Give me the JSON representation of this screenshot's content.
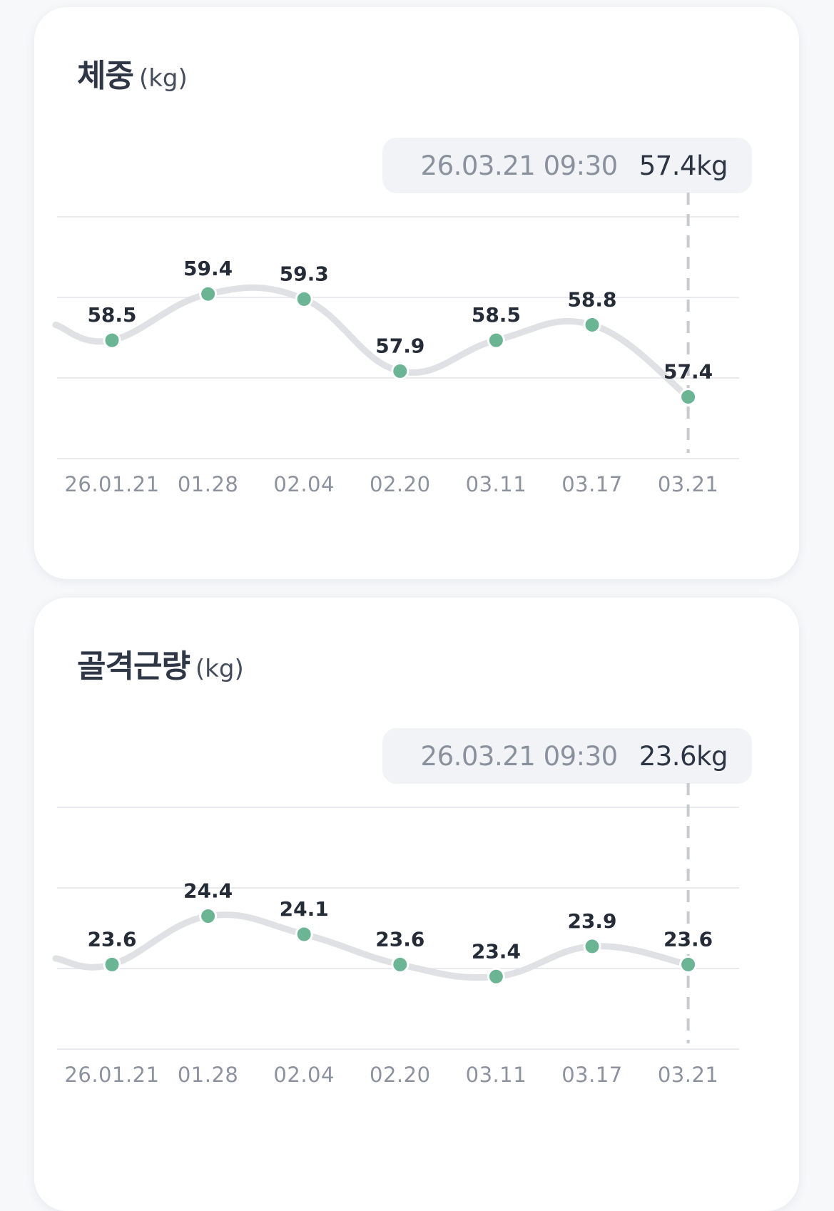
{
  "colors": {
    "line": "#e0e1e4",
    "point": "#6bb595",
    "grid": "#e9eaed",
    "guide": "#c7cad0"
  },
  "chart_data": [
    {
      "type": "line",
      "title": "체중",
      "unit": "(kg)",
      "categories": [
        "26.01.21",
        "01.28",
        "02.04",
        "02.20",
        "03.11",
        "03.17",
        "03.21"
      ],
      "series": [
        {
          "values": [
            58.5,
            59.4,
            59.3,
            57.9,
            58.5,
            58.8,
            57.4
          ]
        }
      ],
      "data_labels": [
        "58.5",
        "59.4",
        "59.3",
        "57.9",
        "58.5",
        "58.8",
        "57.4"
      ],
      "left_edge_value": 58.8,
      "ylim": [
        56.2,
        60.9
      ],
      "grid": true,
      "selected_index": 6,
      "tooltip": {
        "date": "26.03.21 09:30",
        "value": "57.4kg"
      }
    },
    {
      "type": "line",
      "title": "골격근량",
      "unit": "(kg)",
      "categories": [
        "26.01.21",
        "01.28",
        "02.04",
        "02.20",
        "03.11",
        "03.17",
        "03.21"
      ],
      "series": [
        {
          "values": [
            23.6,
            24.4,
            24.1,
            23.6,
            23.4,
            23.9,
            23.6
          ]
        }
      ],
      "data_labels": [
        "23.6",
        "24.4",
        "24.1",
        "23.6",
        "23.4",
        "23.9",
        "23.6"
      ],
      "left_edge_value": 23.7,
      "ylim": [
        22.2,
        26.2
      ],
      "grid": true,
      "selected_index": 6,
      "tooltip": {
        "date": "26.03.21 09:30",
        "value": "23.6kg"
      }
    }
  ]
}
